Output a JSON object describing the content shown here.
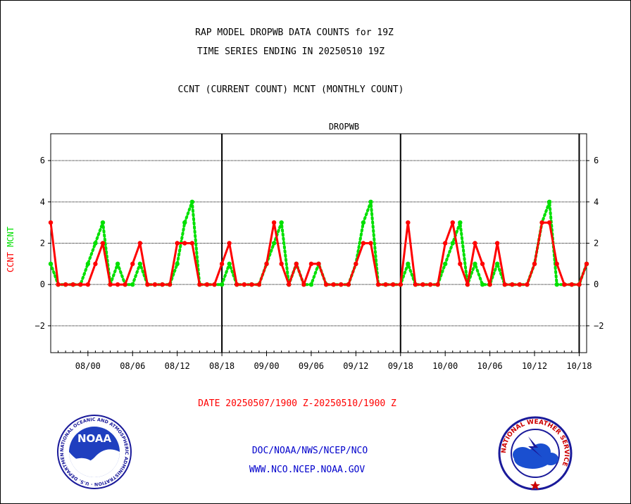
{
  "header": {
    "line1": "RAP MODEL DROPWB DATA COUNTS for 19Z",
    "line2": "TIME SERIES ENDING IN 20250510 19Z",
    "line3": "CCNT (CURRENT COUNT) MCNT (MONTHLY COUNT)"
  },
  "footer": {
    "date_range": "DATE 20250507/1900 Z-20250510/1900 Z",
    "org": "DOC/NOAA/NWS/NCEP/NCO",
    "url": "WWW.NCO.NCEP.NOAA.GOV"
  },
  "logos": {
    "noaa_text": "NOAA",
    "nws_ring_text": "NATIONAL WEATHER SERVICE",
    "noaa_ring_text": "NATIONAL OCEANIC AND ATMOSPHERIC ADMINISTRATION · U.S. DEPARTMENT OF COMMERCE"
  },
  "chart_data": {
    "type": "line",
    "title": "DROPWB",
    "ylabel_ccnt": "CCNT",
    "ylabel_mcnt": "MCNT",
    "ylim": [
      -3.3,
      7.3
    ],
    "yticks": [
      -2,
      0,
      2,
      4,
      6
    ],
    "grid": true,
    "x_tick_labels": [
      "08/00",
      "08/06",
      "08/12",
      "08/18",
      "09/00",
      "09/06",
      "09/12",
      "09/18",
      "10/00",
      "10/06",
      "10/12",
      "10/18"
    ],
    "colors": {
      "ccnt": "#ff0000",
      "mcnt": "#00e000",
      "title": "#0000cc"
    },
    "series": [
      {
        "name": "CCNT",
        "values": [
          3,
          0,
          0,
          0,
          0,
          0,
          1,
          2,
          0,
          0,
          0,
          1,
          2,
          0,
          0,
          0,
          0,
          2,
          2,
          2,
          0,
          0,
          0,
          1,
          2,
          0,
          0,
          0,
          0,
          1,
          3,
          1,
          0,
          1,
          0,
          1,
          1,
          0,
          0,
          0,
          0,
          1,
          2,
          2,
          0,
          0,
          0,
          0,
          3,
          0,
          0,
          0,
          0,
          2,
          3,
          1,
          0,
          2,
          1,
          0,
          2,
          0,
          0,
          0,
          0,
          1,
          3,
          3,
          1,
          0,
          0,
          0,
          1
        ]
      },
      {
        "name": "MCNT",
        "values": [
          1,
          0,
          0,
          0,
          0,
          1,
          2,
          3,
          0,
          1,
          0,
          0,
          1,
          0,
          0,
          0,
          0,
          1,
          3,
          4,
          0,
          0,
          0,
          0,
          1,
          0,
          0,
          0,
          0,
          1,
          2,
          3,
          0,
          1,
          0,
          0,
          1,
          0,
          0,
          0,
          0,
          1,
          3,
          4,
          0,
          0,
          0,
          0,
          1,
          0,
          0,
          0,
          0,
          1,
          2,
          3,
          0,
          1,
          0,
          0,
          1,
          0,
          0,
          0,
          0,
          1,
          3,
          4,
          0,
          0,
          0,
          0,
          1
        ]
      }
    ]
  }
}
